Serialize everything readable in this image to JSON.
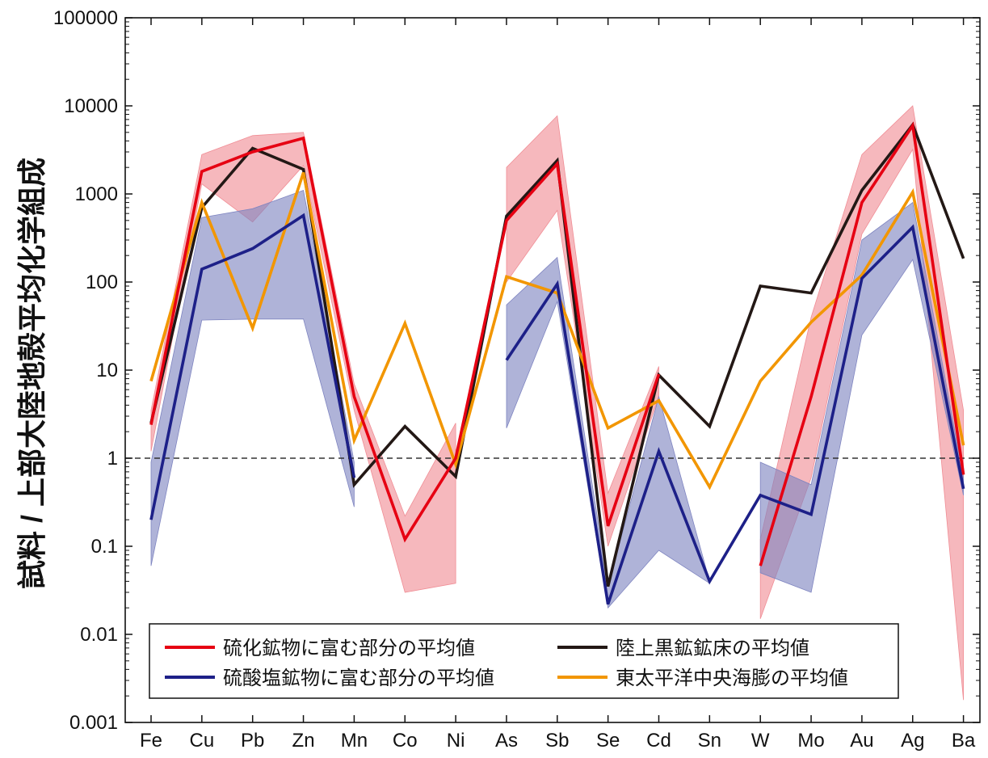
{
  "chart_data": {
    "type": "line",
    "title": "",
    "xlabel": "",
    "ylabel": "試料 / 上部大陸地殻平均化学組成",
    "yscale": "log",
    "ylim": [
      0.001,
      100000
    ],
    "y_ticks": [
      0.001,
      0.01,
      0.1,
      1,
      10,
      100,
      1000,
      10000,
      100000
    ],
    "y_tick_labels": [
      "0.001",
      "0.01",
      "0.1",
      "1",
      "10",
      "100",
      "1000",
      "10000",
      "100000"
    ],
    "categories": [
      "Fe",
      "Cu",
      "Pb",
      "Zn",
      "Mn",
      "Co",
      "Ni",
      "As",
      "Sb",
      "Se",
      "Cd",
      "Sn",
      "W",
      "Mo",
      "Au",
      "Ag",
      "Ba"
    ],
    "reference_line": {
      "y": 1,
      "style": "dashed",
      "color": "#333333"
    },
    "series": [
      {
        "name": "陸上黒鉱鉱床の平均値",
        "color": "#231815",
        "values": [
          2.5,
          700,
          3300,
          1900,
          0.5,
          2.3,
          0.62,
          560,
          2400,
          0.035,
          8.8,
          2.3,
          90,
          75,
          1100,
          6100,
          185
        ]
      },
      {
        "name": "東太平洋中央海膨の平均値",
        "color": "#f29600",
        "values": [
          7.5,
          800,
          30,
          1750,
          1.6,
          34,
          0.85,
          115,
          75,
          2.2,
          4.5,
          0.47,
          7.5,
          35,
          120,
          1050,
          1.4
        ]
      },
      {
        "name": "硫化鉱物に富む部分の平均値",
        "color": "#e60012",
        "values": [
          2.4,
          1800,
          3000,
          4300,
          5,
          0.12,
          1,
          500,
          2200,
          0.17,
          9,
          null,
          0.06,
          5,
          800,
          6000,
          0.65
        ]
      },
      {
        "name": "硫酸塩鉱物に富む部分の平均値",
        "color": "#1d2088",
        "values": [
          0.2,
          140,
          240,
          570,
          0.6,
          null,
          null,
          13,
          95,
          0.022,
          1.2,
          0.04,
          0.38,
          0.23,
          110,
          420,
          0.45
        ]
      }
    ],
    "ranges": [
      {
        "color": "#f08d95",
        "indices": [
          0,
          1,
          2,
          3,
          4,
          5,
          6
        ],
        "low": [
          1.2,
          1300,
          480,
          2100,
          3.5,
          0.03,
          0.038
        ],
        "high": [
          3.5,
          2800,
          4600,
          5000,
          7,
          0.22,
          2.5
        ]
      },
      {
        "color": "#f08d95",
        "indices": [
          7,
          8,
          9,
          10
        ],
        "low": [
          100,
          650,
          0.1,
          5
        ],
        "high": [
          2000,
          7700,
          0.4,
          11
        ]
      },
      {
        "color": "#f08d95",
        "indices": [
          12,
          13,
          14,
          15,
          16
        ],
        "low": [
          0.015,
          0.6,
          350,
          3200,
          0.0018
        ],
        "high": [
          0.12,
          40,
          2800,
          10000,
          3.5
        ]
      },
      {
        "color": "#7e84c0",
        "indices": [
          0,
          1,
          2,
          3,
          4
        ],
        "low": [
          0.06,
          37,
          38,
          38,
          0.28
        ],
        "high": [
          0.9,
          540,
          680,
          1100,
          0.9
        ]
      },
      {
        "color": "#7e84c0",
        "indices": [
          7,
          8,
          9,
          10,
          11
        ],
        "low": [
          2.2,
          60,
          0.02,
          0.09,
          0.038
        ],
        "high": [
          55,
          190,
          0.035,
          5,
          0.04
        ]
      },
      {
        "color": "#7e84c0",
        "indices": [
          12,
          13,
          14,
          15,
          16
        ],
        "low": [
          0.05,
          0.03,
          25,
          180,
          0.38
        ],
        "high": [
          0.9,
          0.5,
          300,
          800,
          0.6
        ]
      }
    ],
    "legend": {
      "placement": "bottom",
      "entries": [
        {
          "label": "硫化鉱物に富む部分の平均値",
          "color": "#e60012"
        },
        {
          "label": "陸上黒鉱鉱床の平均値",
          "color": "#231815"
        },
        {
          "label": "硫酸塩鉱物に富む部分の平均値",
          "color": "#1d2088"
        },
        {
          "label": "東太平洋中央海膨の平均値",
          "color": "#f29600"
        }
      ]
    }
  }
}
